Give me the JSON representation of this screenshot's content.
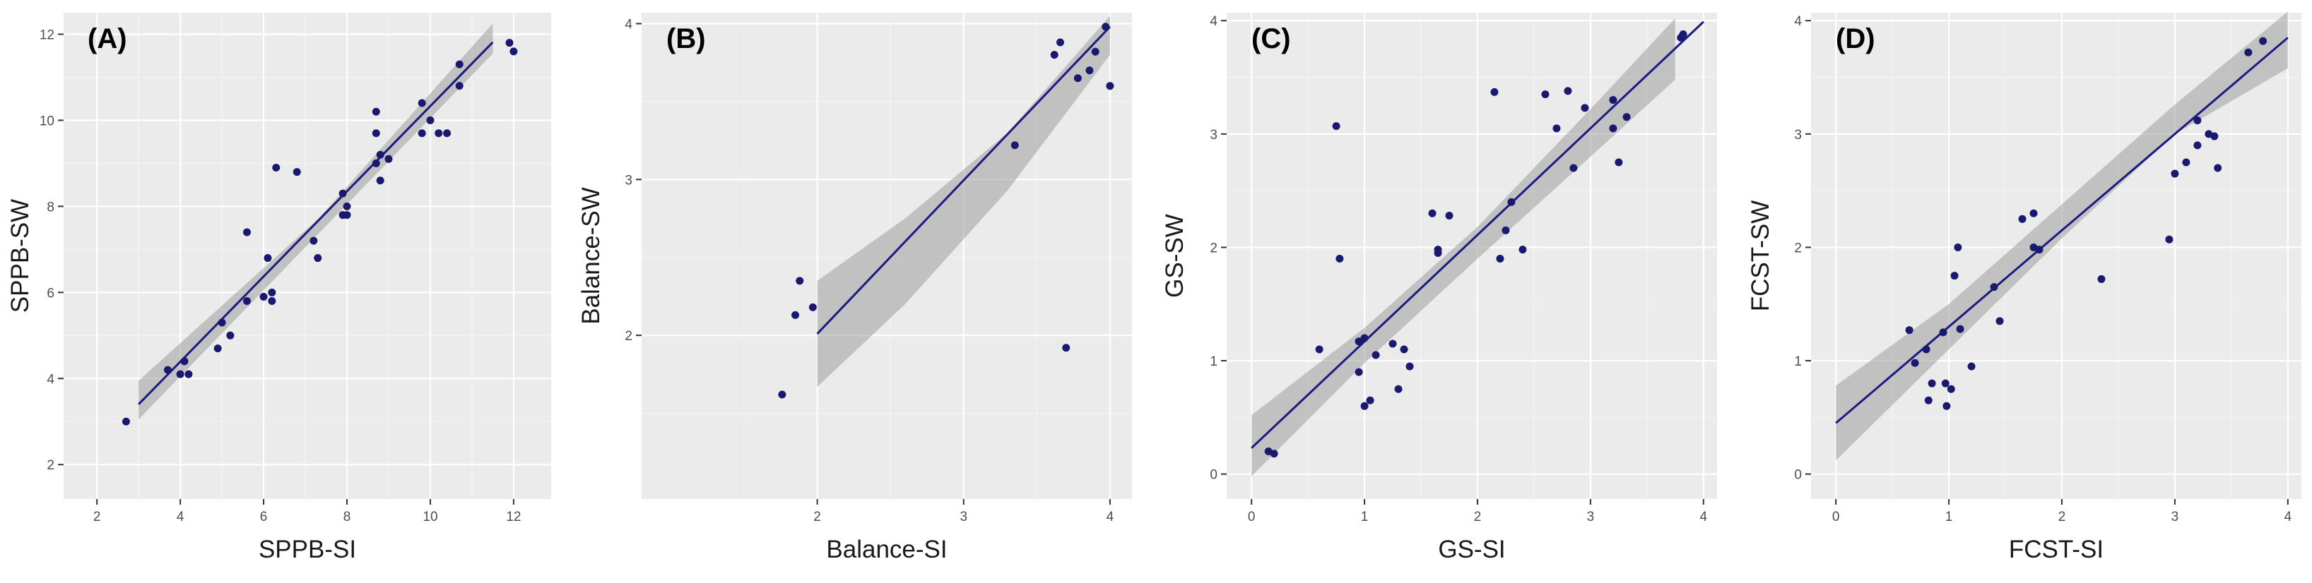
{
  "chart_data": [
    {
      "type": "scatter",
      "tag": "(A)",
      "xlabel": "SPPB-SI",
      "ylabel": "SPPB-SW",
      "xlim": [
        1.2,
        12.9
      ],
      "ylim": [
        1.2,
        12.5
      ],
      "xticks": [
        2,
        4,
        6,
        8,
        10,
        12
      ],
      "yticks": [
        2,
        4,
        6,
        8,
        10,
        12
      ],
      "points": [
        [
          2.7,
          3.0
        ],
        [
          3.7,
          4.2
        ],
        [
          4.0,
          4.1
        ],
        [
          4.1,
          4.4
        ],
        [
          4.2,
          4.1
        ],
        [
          4.9,
          4.7
        ],
        [
          5.0,
          5.3
        ],
        [
          5.2,
          5.0
        ],
        [
          5.6,
          5.8
        ],
        [
          5.6,
          7.4
        ],
        [
          6.0,
          5.9
        ],
        [
          6.1,
          6.8
        ],
        [
          6.2,
          6.0
        ],
        [
          6.2,
          5.8
        ],
        [
          6.3,
          8.9
        ],
        [
          6.8,
          8.8
        ],
        [
          7.2,
          7.2
        ],
        [
          7.3,
          6.8
        ],
        [
          7.9,
          8.3
        ],
        [
          7.9,
          7.8
        ],
        [
          8.0,
          8.0
        ],
        [
          8.0,
          7.8
        ],
        [
          8.7,
          9.0
        ],
        [
          8.7,
          10.2
        ],
        [
          8.7,
          9.7
        ],
        [
          8.8,
          8.6
        ],
        [
          8.8,
          9.2
        ],
        [
          9.0,
          9.1
        ],
        [
          9.8,
          10.4
        ],
        [
          9.8,
          9.7
        ],
        [
          10.0,
          10.0
        ],
        [
          10.2,
          9.7
        ],
        [
          10.4,
          9.7
        ],
        [
          10.7,
          11.3
        ],
        [
          10.7,
          10.8
        ],
        [
          11.9,
          11.8
        ],
        [
          12.0,
          11.6
        ]
      ],
      "fit": {
        "x0": 3.0,
        "x1": 11.5,
        "intercept": 0.43,
        "slope": 0.99
      },
      "band": {
        "upper": [
          [
            3.0,
            3.95
          ],
          [
            7.3,
            7.7
          ],
          [
            11.5,
            12.25
          ]
        ],
        "lower": [
          [
            3.0,
            3.05
          ],
          [
            7.3,
            7.35
          ],
          [
            11.5,
            11.55
          ]
        ]
      }
    },
    {
      "type": "scatter",
      "tag": "(B)",
      "xlabel": "Balance-SI",
      "ylabel": "Balance-SW",
      "xlim": [
        0.8,
        4.15
      ],
      "ylim": [
        0.95,
        4.07
      ],
      "xticks": [
        2,
        3,
        4
      ],
      "yticks": [
        2,
        3,
        4
      ],
      "points": [
        [
          1.76,
          1.62
        ],
        [
          1.85,
          2.13
        ],
        [
          1.88,
          2.35
        ],
        [
          1.97,
          2.18
        ],
        [
          3.35,
          3.22
        ],
        [
          3.62,
          3.8
        ],
        [
          3.66,
          3.88
        ],
        [
          3.7,
          1.92
        ],
        [
          3.78,
          3.65
        ],
        [
          3.86,
          3.7
        ],
        [
          3.9,
          3.82
        ],
        [
          3.97,
          3.98
        ],
        [
          4.0,
          3.6
        ]
      ],
      "fit": {
        "x0": 2.0,
        "x1": 4.0,
        "intercept": 0.04,
        "slope": 0.985
      },
      "band": {
        "upper": [
          [
            2.0,
            2.35
          ],
          [
            2.6,
            2.75
          ],
          [
            3.3,
            3.3
          ],
          [
            4.0,
            4.05
          ]
        ],
        "lower": [
          [
            2.0,
            1.67
          ],
          [
            2.6,
            2.2
          ],
          [
            3.3,
            2.93
          ],
          [
            4.0,
            3.8
          ]
        ]
      }
    },
    {
      "type": "scatter",
      "tag": "(C)",
      "xlabel": "GS-SI",
      "ylabel": "GS-SW",
      "xlim": [
        -0.22,
        4.12
      ],
      "ylim": [
        -0.22,
        4.07
      ],
      "xticks": [
        0,
        1,
        2,
        3,
        4
      ],
      "yticks": [
        0,
        1,
        2,
        3,
        4
      ],
      "points": [
        [
          0.15,
          0.2
        ],
        [
          0.2,
          0.18
        ],
        [
          0.6,
          1.1
        ],
        [
          0.75,
          3.07
        ],
        [
          0.78,
          1.9
        ],
        [
          0.95,
          1.17
        ],
        [
          0.95,
          0.9
        ],
        [
          1.0,
          0.6
        ],
        [
          1.0,
          1.2
        ],
        [
          1.05,
          0.65
        ],
        [
          1.1,
          1.05
        ],
        [
          1.25,
          1.15
        ],
        [
          1.3,
          0.75
        ],
        [
          1.35,
          1.1
        ],
        [
          1.4,
          0.95
        ],
        [
          1.6,
          2.3
        ],
        [
          1.65,
          1.95
        ],
        [
          1.65,
          1.98
        ],
        [
          1.75,
          2.28
        ],
        [
          2.15,
          3.37
        ],
        [
          2.2,
          1.9
        ],
        [
          2.25,
          2.15
        ],
        [
          2.3,
          2.4
        ],
        [
          2.4,
          1.98
        ],
        [
          2.6,
          3.35
        ],
        [
          2.7,
          3.05
        ],
        [
          2.8,
          3.38
        ],
        [
          2.85,
          2.7
        ],
        [
          2.95,
          3.23
        ],
        [
          3.2,
          3.3
        ],
        [
          3.2,
          3.05
        ],
        [
          3.25,
          2.75
        ],
        [
          3.32,
          3.15
        ],
        [
          3.8,
          3.85
        ],
        [
          3.82,
          3.88
        ]
      ],
      "fit": {
        "x0": 0.0,
        "x1": 4.0,
        "intercept": 0.23,
        "slope": 0.94
      },
      "band": {
        "upper": [
          [
            0.0,
            0.52
          ],
          [
            1.0,
            1.29
          ],
          [
            2.0,
            2.18
          ],
          [
            3.0,
            3.22
          ],
          [
            3.75,
            4.02
          ]
        ],
        "lower": [
          [
            0.0,
            -0.02
          ],
          [
            1.0,
            0.98
          ],
          [
            2.0,
            1.9
          ],
          [
            3.0,
            2.8
          ],
          [
            3.75,
            3.48
          ]
        ]
      }
    },
    {
      "type": "scatter",
      "tag": "(D)",
      "xlabel": "FCST-SI",
      "ylabel": "FCST-SW",
      "xlim": [
        -0.22,
        4.12
      ],
      "ylim": [
        -0.22,
        4.07
      ],
      "xticks": [
        0,
        1,
        2,
        3,
        4
      ],
      "yticks": [
        0,
        1,
        2,
        3,
        4
      ],
      "points": [
        [
          0.65,
          1.27
        ],
        [
          0.7,
          0.98
        ],
        [
          0.8,
          1.1
        ],
        [
          0.82,
          0.65
        ],
        [
          0.85,
          0.8
        ],
        [
          0.95,
          1.25
        ],
        [
          0.97,
          0.8
        ],
        [
          0.98,
          0.6
        ],
        [
          1.02,
          0.75
        ],
        [
          1.05,
          1.75
        ],
        [
          1.08,
          2.0
        ],
        [
          1.1,
          1.28
        ],
        [
          1.2,
          0.95
        ],
        [
          1.4,
          1.65
        ],
        [
          1.45,
          1.35
        ],
        [
          1.65,
          2.25
        ],
        [
          1.75,
          2.3
        ],
        [
          1.75,
          2.0
        ],
        [
          1.8,
          1.98
        ],
        [
          2.35,
          1.72
        ],
        [
          2.95,
          2.07
        ],
        [
          3.0,
          2.65
        ],
        [
          3.1,
          2.75
        ],
        [
          3.2,
          2.9
        ],
        [
          3.2,
          3.12
        ],
        [
          3.3,
          3.0
        ],
        [
          3.35,
          2.98
        ],
        [
          3.38,
          2.7
        ],
        [
          3.65,
          3.72
        ],
        [
          3.78,
          3.82
        ]
      ],
      "fit": {
        "x0": 0.0,
        "x1": 4.0,
        "intercept": 0.45,
        "slope": 0.85
      },
      "band": {
        "upper": [
          [
            0.0,
            0.78
          ],
          [
            1.0,
            1.5
          ],
          [
            2.0,
            2.38
          ],
          [
            3.0,
            3.26
          ],
          [
            4.0,
            4.08
          ]
        ],
        "lower": [
          [
            0.0,
            0.12
          ],
          [
            1.0,
            1.1
          ],
          [
            2.0,
            2.08
          ],
          [
            3.0,
            3.0
          ],
          [
            4.0,
            3.58
          ]
        ]
      }
    }
  ]
}
